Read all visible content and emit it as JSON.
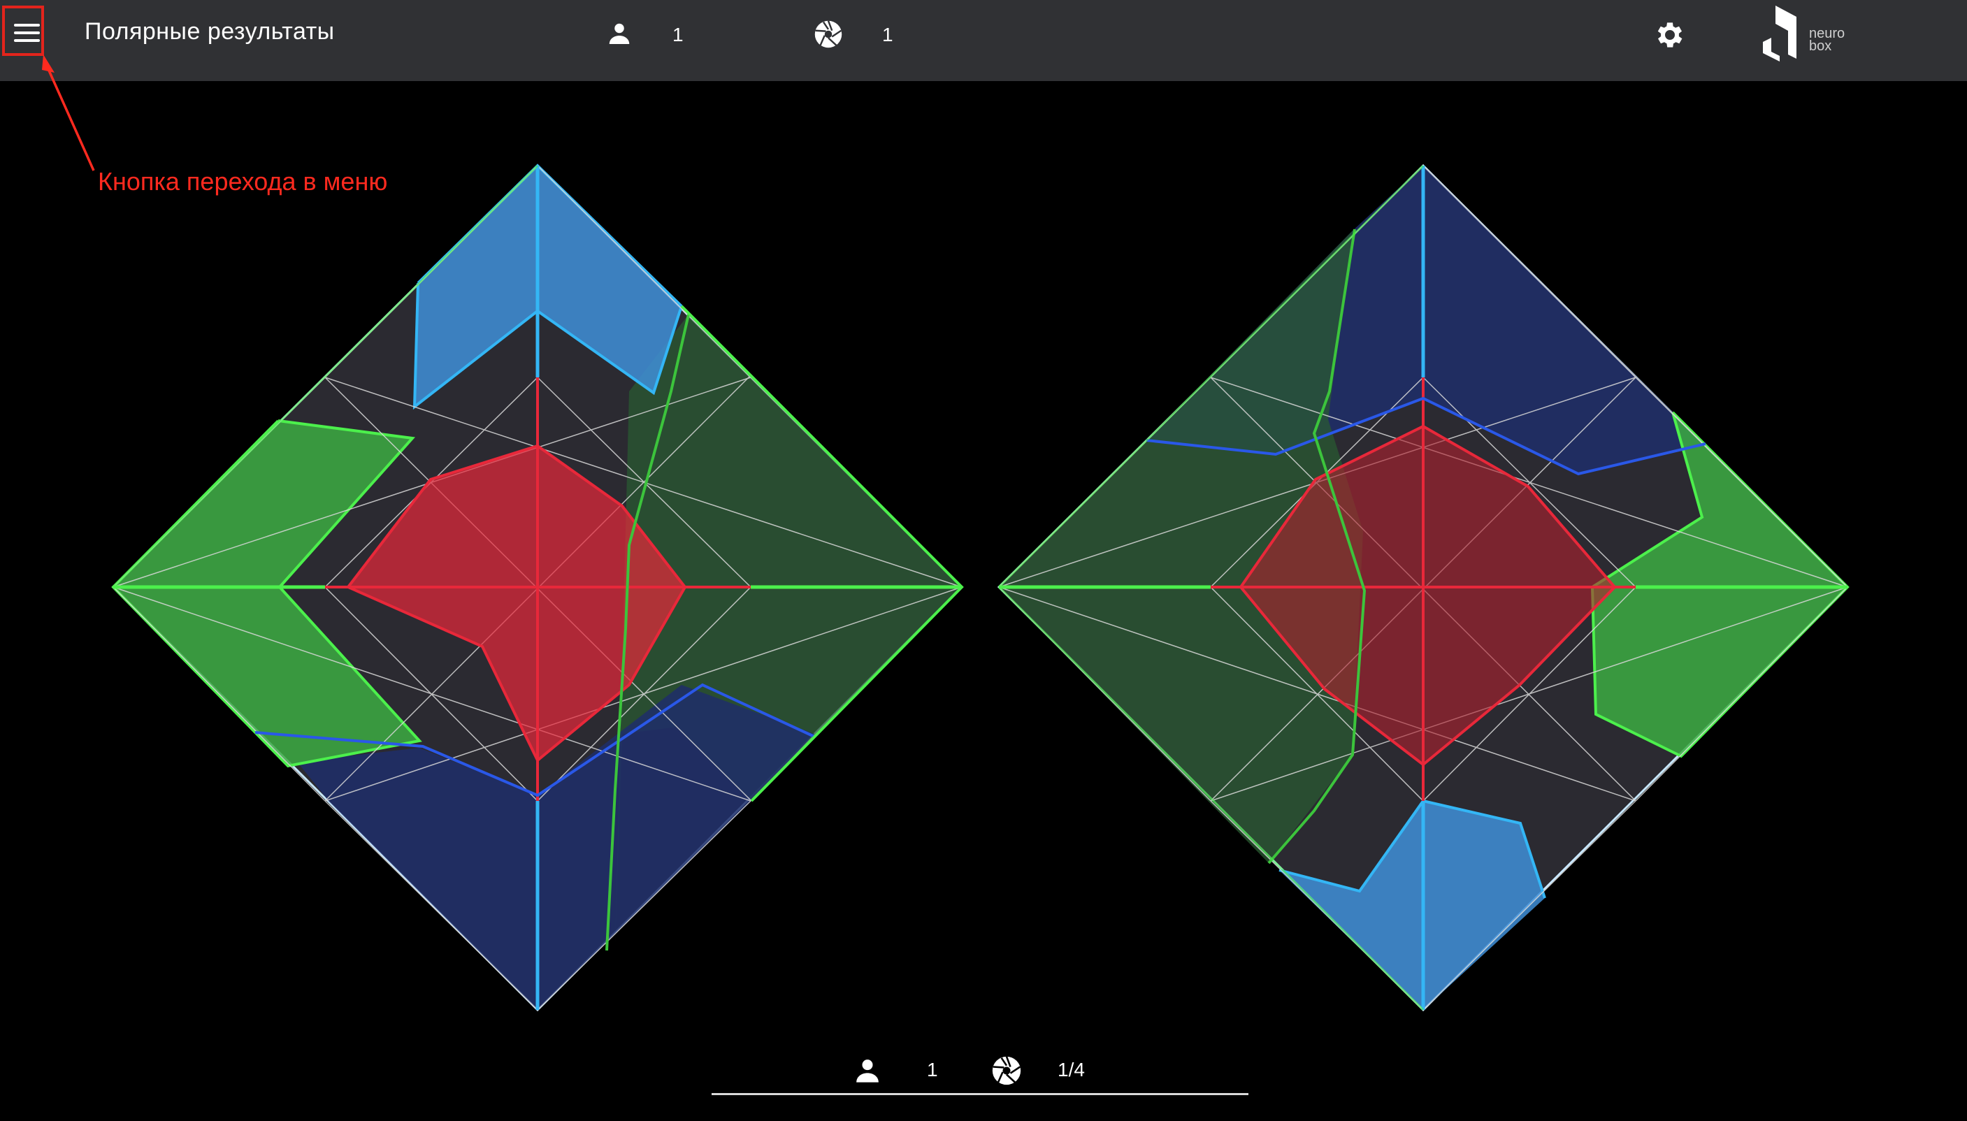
{
  "topbar": {
    "title": "Полярные результаты",
    "participants_icon": "person-icon",
    "participants_count": "1",
    "sessions_icon": "aperture-icon",
    "sessions_count": "1",
    "settings_icon": "gear-icon",
    "logo_text_1": "neuro",
    "logo_text_2": "box"
  },
  "annotation": {
    "label": "Кнопка перехода в меню",
    "color": "#ff2a1f"
  },
  "footer": {
    "participant_icon": "person-icon",
    "participant_value": "1",
    "record_icon": "aperture-icon",
    "record_value": "1/4"
  },
  "colors": {
    "red": "#e8283a",
    "green": "#4cf04c",
    "light_blue": "#34b6f5",
    "dark_blue": "#2a58e8",
    "background": "#000000",
    "bar": "#303134"
  }
}
